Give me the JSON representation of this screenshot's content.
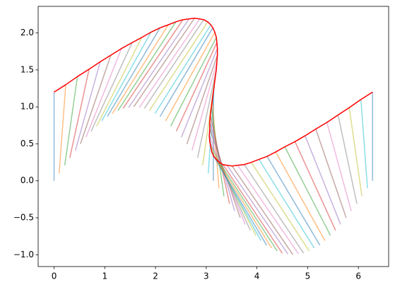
{
  "chart_data": {
    "type": "segments",
    "xlim": [
      -0.314,
      6.597
    ],
    "ylim": [
      -1.16,
      2.36
    ],
    "xticks": [
      0,
      1,
      2,
      3,
      4,
      5,
      6
    ],
    "yticks": [
      {
        "value": -1,
        "label": "−1.0"
      },
      {
        "value": -0.5,
        "label": "−0.5"
      },
      {
        "value": 0,
        "label": "0.0"
      },
      {
        "value": 0.5,
        "label": "0.5"
      },
      {
        "value": 1,
        "label": "1.0"
      },
      {
        "value": 1.5,
        "label": "1.5"
      },
      {
        "value": 2,
        "label": "2.0"
      }
    ],
    "colors": [
      "#1f77b4",
      "#ff7f0e",
      "#2ca02c",
      "#d62728",
      "#9467bd",
      "#8c564b",
      "#e377c2",
      "#7f7f7f",
      "#bcbd22",
      "#17becf"
    ],
    "segment_opacity": 0.5,
    "curve_color": "#ff0000",
    "x0": [
      0,
      0.1,
      0.21,
      0.31,
      0.42,
      0.52,
      0.63,
      0.73,
      0.84,
      0.94,
      1.05,
      1.15,
      1.26,
      1.36,
      1.47,
      1.57,
      1.68,
      1.78,
      1.88,
      1.99,
      2.09,
      2.2,
      2.3,
      2.41,
      2.51,
      2.62,
      2.72,
      2.83,
      2.93,
      3.04,
      3.14,
      3.25,
      3.35,
      3.46,
      3.56,
      3.67,
      3.77,
      3.87,
      3.98,
      4.08,
      4.19,
      4.29,
      4.4,
      4.5,
      4.61,
      4.71,
      4.82,
      4.92,
      5.03,
      5.13,
      5.24,
      5.34,
      5.45,
      5.55,
      5.65,
      5.76,
      5.86,
      5.97,
      6.07,
      6.18,
      6.28
    ],
    "y0": [
      0,
      0.1,
      0.21,
      0.31,
      0.41,
      0.5,
      0.59,
      0.67,
      0.74,
      0.81,
      0.87,
      0.91,
      0.95,
      0.98,
      0.99,
      1.0,
      0.99,
      0.98,
      0.95,
      0.91,
      0.87,
      0.81,
      0.74,
      0.67,
      0.59,
      0.5,
      0.41,
      0.31,
      0.21,
      0.1,
      0,
      -0.1,
      -0.21,
      -0.31,
      -0.41,
      -0.5,
      -0.59,
      -0.67,
      -0.74,
      -0.81,
      -0.87,
      -0.91,
      -0.95,
      -0.98,
      -0.99,
      -1.0,
      -0.99,
      -0.98,
      -0.95,
      -0.91,
      -0.87,
      -0.81,
      -0.74,
      -0.67,
      -0.59,
      -0.5,
      -0.41,
      -0.31,
      -0.21,
      -0.1,
      0
    ],
    "x1": [
      0,
      0.23,
      0.46,
      0.69,
      0.91,
      1.12,
      1.33,
      1.54,
      1.73,
      1.91,
      2.09,
      2.25,
      2.4,
      2.54,
      2.66,
      2.77,
      2.87,
      2.95,
      3.03,
      3.09,
      3.13,
      3.17,
      3.2,
      3.21,
      3.22,
      3.22,
      3.21,
      3.2,
      3.18,
      3.16,
      3.14,
      3.12,
      3.1,
      3.08,
      3.07,
      3.07,
      3.06,
      3.07,
      3.09,
      3.11,
      3.15,
      3.2,
      3.26,
      3.33,
      3.41,
      3.51,
      3.62,
      3.75,
      3.89,
      4.04,
      4.2,
      4.37,
      4.55,
      4.75,
      4.95,
      5.16,
      5.38,
      5.6,
      5.82,
      6.05,
      6.28
    ],
    "y1": [
      1.2,
      1.3,
      1.41,
      1.51,
      1.61,
      1.7,
      1.79,
      1.87,
      1.94,
      2.01,
      2.07,
      2.11,
      2.15,
      2.18,
      2.19,
      2.2,
      2.19,
      2.18,
      2.15,
      2.11,
      2.07,
      2.01,
      1.94,
      1.87,
      1.79,
      1.7,
      1.61,
      1.51,
      1.41,
      1.3,
      1.2,
      1.1,
      0.99,
      0.89,
      0.79,
      0.7,
      0.61,
      0.53,
      0.46,
      0.39,
      0.33,
      0.29,
      0.25,
      0.22,
      0.21,
      0.2,
      0.21,
      0.22,
      0.25,
      0.29,
      0.33,
      0.39,
      0.46,
      0.53,
      0.61,
      0.7,
      0.79,
      0.89,
      0.99,
      1.1,
      1.2
    ]
  }
}
